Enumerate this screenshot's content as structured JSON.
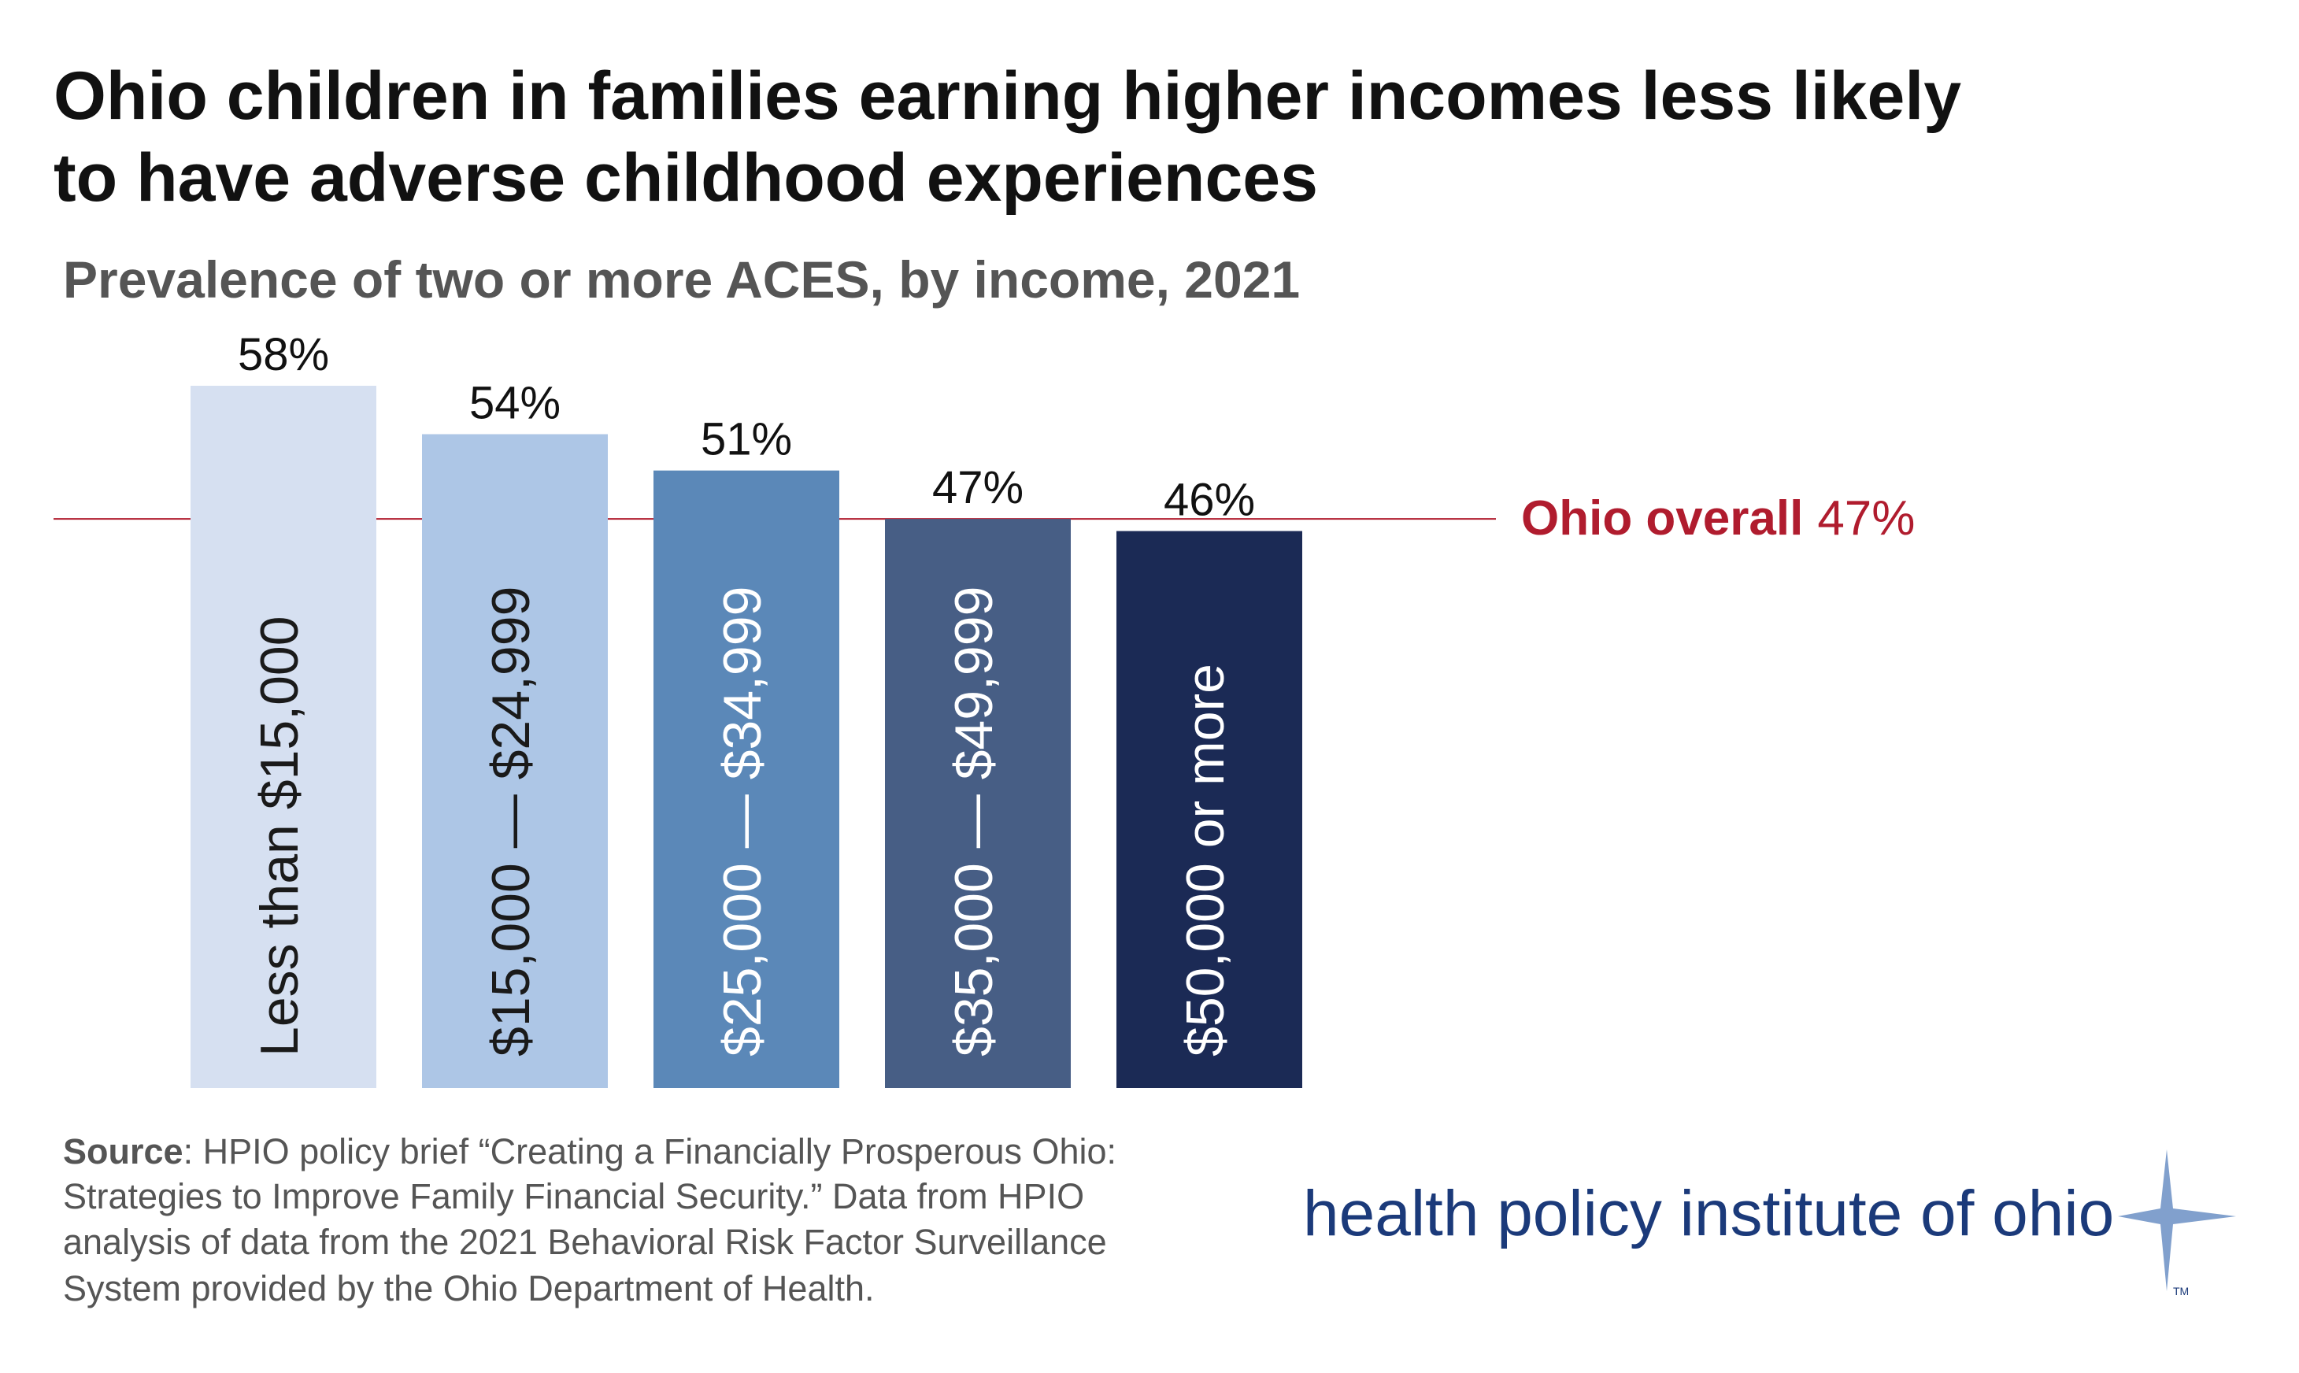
{
  "chart_data": {
    "type": "bar",
    "title": [
      "Ohio children in families earning higher incomes less likely",
      "to have adverse childhood experiences"
    ],
    "subtitle": "Prevalence of two or more ACES, by income, 2021",
    "categories": [
      "Less than $15,000",
      "$15,000 — $24,999",
      "$25,000 — $34,999",
      "$35,000 — $49,999",
      "$50,000 or more"
    ],
    "values": [
      58,
      54,
      51,
      47,
      46
    ],
    "value_labels": [
      "58%",
      "54%",
      "51%",
      "47%",
      "46%"
    ],
    "colors": [
      "#d6e0f1",
      "#adc6e6",
      "#5b88b8",
      "#475e85",
      "#1b2a55"
    ],
    "label_colors": [
      "#1a1a1a",
      "#1a1a1a",
      "#ffffff",
      "#ffffff",
      "#ffffff"
    ],
    "reference_line": {
      "label": "Ohio overall",
      "value": 47,
      "value_label": "47%",
      "color": "#b01c2e"
    }
  },
  "footer": {
    "source_label": "Source",
    "source_lines": [
      ": HPIO policy brief “Creating a Financially Prosperous Ohio:",
      "Strategies to Improve Family Financial Security.” Data from HPIO",
      "analysis of data from the 2021 Behavioral Risk Factor Surveillance",
      "System provided by the Ohio Department of Health."
    ],
    "logo_text": "health policy institute of ohio",
    "trademark": "TM"
  }
}
